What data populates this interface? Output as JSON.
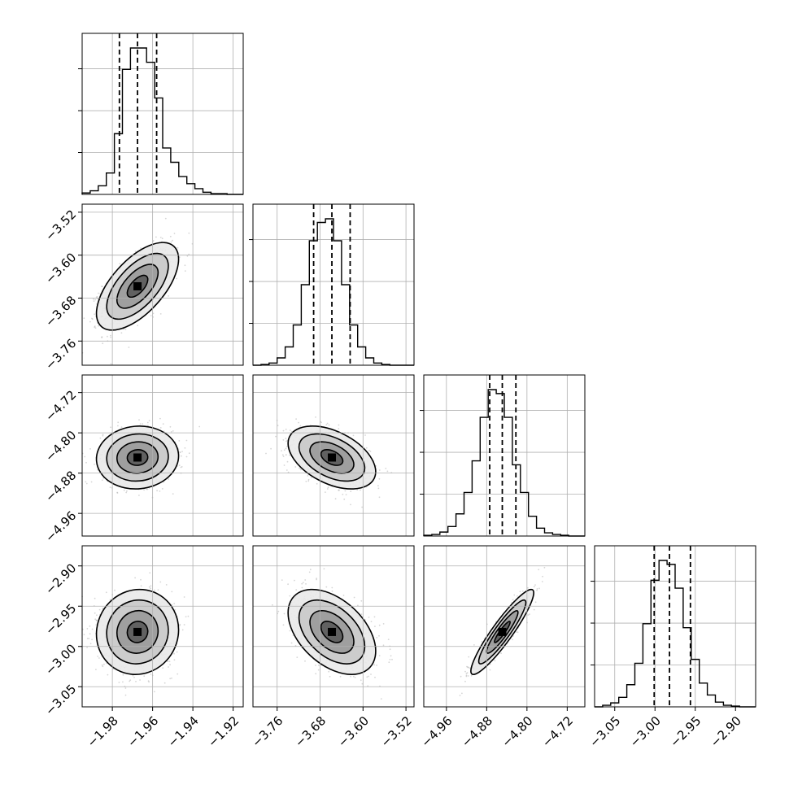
{
  "chart_data": {
    "type": "corner",
    "grid": true,
    "colors": {
      "hist": "#000000",
      "quantile_line": "#000000",
      "grid": "#b0b0b0",
      "scatter": "#8a8a8a",
      "density": "#000000"
    },
    "parameters": [
      {
        "range": [
          -1.995,
          -1.915
        ],
        "ticks": [
          "−1.98",
          "−1.96",
          "−1.94",
          "−1.92"
        ],
        "quantiles": [
          -1.9765,
          -1.9675,
          -1.958
        ]
      },
      {
        "range": [
          -3.805,
          -3.505
        ],
        "ticks": [
          "−3.76",
          "−3.68",
          "−3.60",
          "−3.52"
        ],
        "quantiles": [
          -3.692,
          -3.658,
          -3.624
        ]
      },
      {
        "range": [
          -5.005,
          -4.685
        ],
        "ticks": [
          "−4.96",
          "−4.88",
          "−4.80",
          "−4.72"
        ],
        "quantiles": [
          -4.874,
          -4.849,
          -4.822
        ]
      },
      {
        "range": [
          -3.075,
          -2.875
        ],
        "ticks": [
          "−3.05",
          "−3.00",
          "−2.95",
          "−2.90"
        ],
        "quantiles": [
          -3.001,
          -2.982,
          -2.956
        ]
      }
    ],
    "histograms": [
      {
        "bins": 20,
        "counts": [
          2,
          5,
          12,
          30,
          85,
          175,
          205,
          205,
          185,
          135,
          65,
          45,
          25,
          15,
          8,
          3,
          1,
          1,
          0,
          0
        ]
      },
      {
        "bins": 20,
        "counts": [
          0,
          1,
          3,
          10,
          25,
          55,
          110,
          170,
          195,
          200,
          170,
          110,
          55,
          25,
          10,
          3,
          1,
          0,
          0,
          0
        ]
      },
      {
        "bins": 20,
        "counts": [
          1,
          2,
          5,
          12,
          28,
          55,
          95,
          150,
          185,
          180,
          150,
          90,
          55,
          25,
          10,
          4,
          2,
          1,
          0,
          0
        ]
      },
      {
        "bins": 20,
        "counts": [
          0,
          2,
          5,
          12,
          28,
          55,
          105,
          160,
          185,
          180,
          150,
          100,
          60,
          30,
          15,
          6,
          2,
          1,
          0,
          0
        ]
      }
    ],
    "pairs": [
      {
        "x": 0,
        "y": 1,
        "x_mean": -1.9675,
        "y_mean": -3.658,
        "x_sd": 0.0085,
        "y_sd": 0.034,
        "corr": 0.62
      },
      {
        "x": 0,
        "y": 2,
        "x_mean": -1.9675,
        "y_mean": -4.849,
        "x_sd": 0.0085,
        "y_sd": 0.026,
        "corr": 0.05
      },
      {
        "x": 1,
        "y": 2,
        "x_mean": -3.658,
        "y_mean": -4.849,
        "x_sd": 0.034,
        "y_sd": 0.026,
        "corr": -0.45
      },
      {
        "x": 0,
        "y": 3,
        "x_mean": -1.9675,
        "y_mean": -2.982,
        "x_sd": 0.0085,
        "y_sd": 0.022,
        "corr": 0.05
      },
      {
        "x": 1,
        "y": 3,
        "x_mean": -3.658,
        "y_mean": -2.982,
        "x_sd": 0.034,
        "y_sd": 0.022,
        "corr": -0.45
      },
      {
        "x": 2,
        "y": 3,
        "x_mean": -4.849,
        "y_mean": -2.982,
        "x_sd": 0.026,
        "y_sd": 0.022,
        "corr": 0.92
      }
    ],
    "contour_levels_sigma": [
      0.5,
      1.0,
      1.5,
      2.0
    ]
  }
}
